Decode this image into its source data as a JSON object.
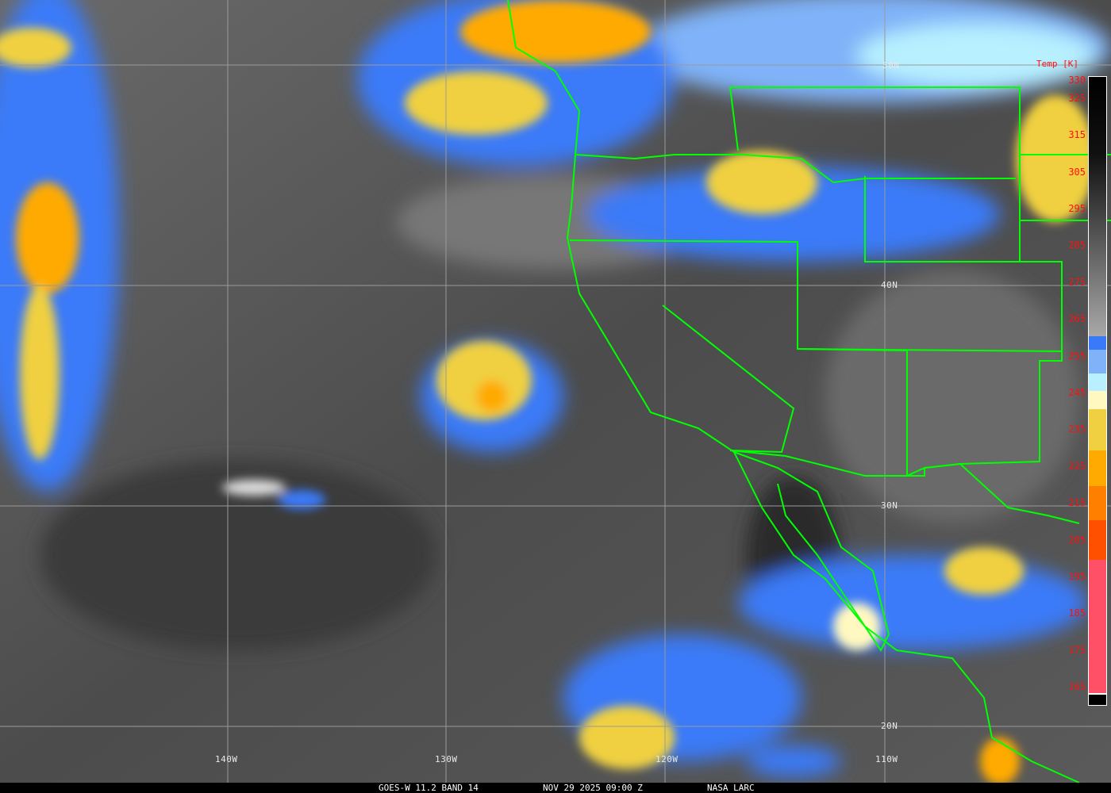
{
  "footer": {
    "satellite": "GOES-W 11.2 BAND 14",
    "datetime": "NOV 29 2025 09:00 Z",
    "source": "NASA LARC"
  },
  "grid": {
    "latitudes": [
      "50N",
      "40N",
      "30N",
      "20N"
    ],
    "longitudes": [
      "140W",
      "130W",
      "120W",
      "110W"
    ]
  },
  "colorbar": {
    "title": "Temp [K]",
    "ticks": [
      "330",
      "325",
      "315",
      "305",
      "295",
      "285",
      "275",
      "265",
      "255",
      "245",
      "235",
      "225",
      "215",
      "205",
      "195",
      "185",
      "175",
      "165"
    ],
    "colors": {
      "cold_black": "#000000",
      "gray": "#9a9a9a",
      "blue": "#3a7af8",
      "light_blue": "#7fb2f8",
      "cyan": "#b8f0ff",
      "pale_yellow": "#fff8c0",
      "yellow": "#f0d040",
      "orange": "#ffaa00",
      "dark_orange": "#ff7f00",
      "red_orange": "#ff5000",
      "pink": "#ff5068"
    }
  },
  "overlay_color": "#00ff00"
}
